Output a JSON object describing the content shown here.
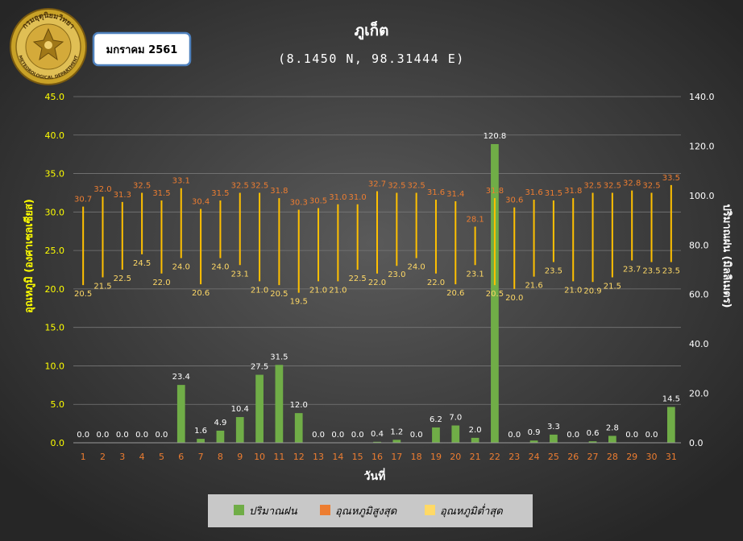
{
  "header": {
    "title": "ภูเก็ต",
    "subtitle": "(8.1450 N, 98.31444 E)",
    "month_label": "มกราคม 2561",
    "logo_text_top": "กรมอุตุนิยมวิทยา",
    "logo_text_bottom": "METEOROLOGICAL DEPARTMENT"
  },
  "colors": {
    "background_center": "#5a5a5a",
    "background_edge": "#262626",
    "rain": "#70ad47",
    "max_temp": "#ed7d31",
    "min_temp": "#ffd966",
    "range_line": "#ffc000",
    "left_axis": "#ffff00",
    "right_axis": "#ffffff",
    "x_ticks": "#ed7d31"
  },
  "chart_data": {
    "type": "bar",
    "xlabel": "วันที่",
    "ylabel_left": "อุณหภูมิ (องศาเซลเซียส)",
    "ylabel_right": "ปริมาณฝน (มิลลิเมตร)",
    "ylim_left": [
      0,
      45
    ],
    "ylim_right": [
      0,
      140
    ],
    "yticks_left": [
      "0.0",
      "5.0",
      "10.0",
      "15.0",
      "20.0",
      "25.0",
      "30.0",
      "35.0",
      "40.0",
      "45.0"
    ],
    "yticks_right": [
      "0.0",
      "20.0",
      "40.0",
      "60.0",
      "80.0",
      "100.0",
      "120.0",
      "140.0"
    ],
    "categories": [
      "1",
      "2",
      "3",
      "4",
      "5",
      "6",
      "7",
      "8",
      "9",
      "10",
      "11",
      "12",
      "13",
      "14",
      "15",
      "16",
      "17",
      "18",
      "19",
      "20",
      "21",
      "22",
      "23",
      "24",
      "25",
      "26",
      "27",
      "28",
      "29",
      "30",
      "31"
    ],
    "grid": true,
    "legend_position": "bottom",
    "series": [
      {
        "name": "ปริมาณฝน",
        "axis": "right",
        "values": [
          0.0,
          0.0,
          0.0,
          0.0,
          0.0,
          23.4,
          1.6,
          4.9,
          10.4,
          27.5,
          31.5,
          12.0,
          0.0,
          0.0,
          0.0,
          0.4,
          1.2,
          0.0,
          6.2,
          7.0,
          2.0,
          120.8,
          0.0,
          0.9,
          3.3,
          0.0,
          0.6,
          2.8,
          0.0,
          0.0,
          14.5
        ],
        "labels": [
          "0.0",
          "0.0",
          "0.0",
          "0.0",
          "0.0",
          "23.4",
          "1.6",
          "4.9",
          "10.4",
          "27.5",
          "31.5",
          "12.0",
          "0.0",
          "0.0",
          "0.0",
          "0.4",
          "1.2",
          "0.0",
          "6.2",
          "7.0",
          "2.0",
          "120.8",
          "0.0",
          "0.9",
          "3.3",
          "0.0",
          "0.6",
          "2.8",
          "0.0",
          "0.0",
          "14.5"
        ]
      },
      {
        "name": "อุณหภูมิสูงสุด",
        "axis": "left",
        "values": [
          30.7,
          32.0,
          31.3,
          32.5,
          31.5,
          33.1,
          30.4,
          31.5,
          32.5,
          32.5,
          31.8,
          30.3,
          30.5,
          31.0,
          31.0,
          32.7,
          32.5,
          32.5,
          31.6,
          31.4,
          28.1,
          31.8,
          30.6,
          31.6,
          31.5,
          31.8,
          32.5,
          32.5,
          32.8,
          32.5,
          33.5
        ],
        "labels": [
          "30.7",
          "32.0",
          "31.3",
          "32.5",
          "31.5",
          "33.1",
          "30.4",
          "31.5",
          "32.5",
          "32.5",
          "31.8",
          "30.3",
          "30.5",
          "31.0",
          "31.0",
          "32.7",
          "32.5",
          "32.5",
          "31.6",
          "31.4",
          "28.1",
          "31.8",
          "30.6",
          "31.6",
          "31.5",
          "31.8",
          "32.5",
          "32.5",
          "32.8",
          "32.5",
          "33.5"
        ]
      },
      {
        "name": "อุณหภูมิต่ำสุด",
        "axis": "left",
        "values": [
          20.5,
          21.5,
          22.5,
          24.5,
          22.0,
          24.0,
          20.6,
          24.0,
          23.1,
          21.0,
          20.5,
          19.5,
          21.0,
          21.0,
          22.5,
          22.0,
          23.0,
          24.0,
          22.0,
          20.6,
          23.1,
          20.5,
          20.0,
          21.6,
          23.5,
          21.0,
          20.9,
          21.5,
          23.7,
          23.5,
          23.5
        ],
        "labels": [
          "20.5",
          "21.5",
          "22.5",
          "24.5",
          "22.0",
          "24.0",
          "20.6",
          "24.0",
          "23.1",
          "21.0",
          "20.5",
          "19.5",
          "21.0",
          "21.0",
          "22.5",
          "22.0",
          "23.0",
          "24.0",
          "22.0",
          "20.6",
          "23.1",
          "20.5",
          "20.0",
          "21.6",
          "23.5",
          "21.0",
          "20.9",
          "21.5",
          "23.7",
          "23.5",
          "23.5"
        ]
      }
    ]
  }
}
